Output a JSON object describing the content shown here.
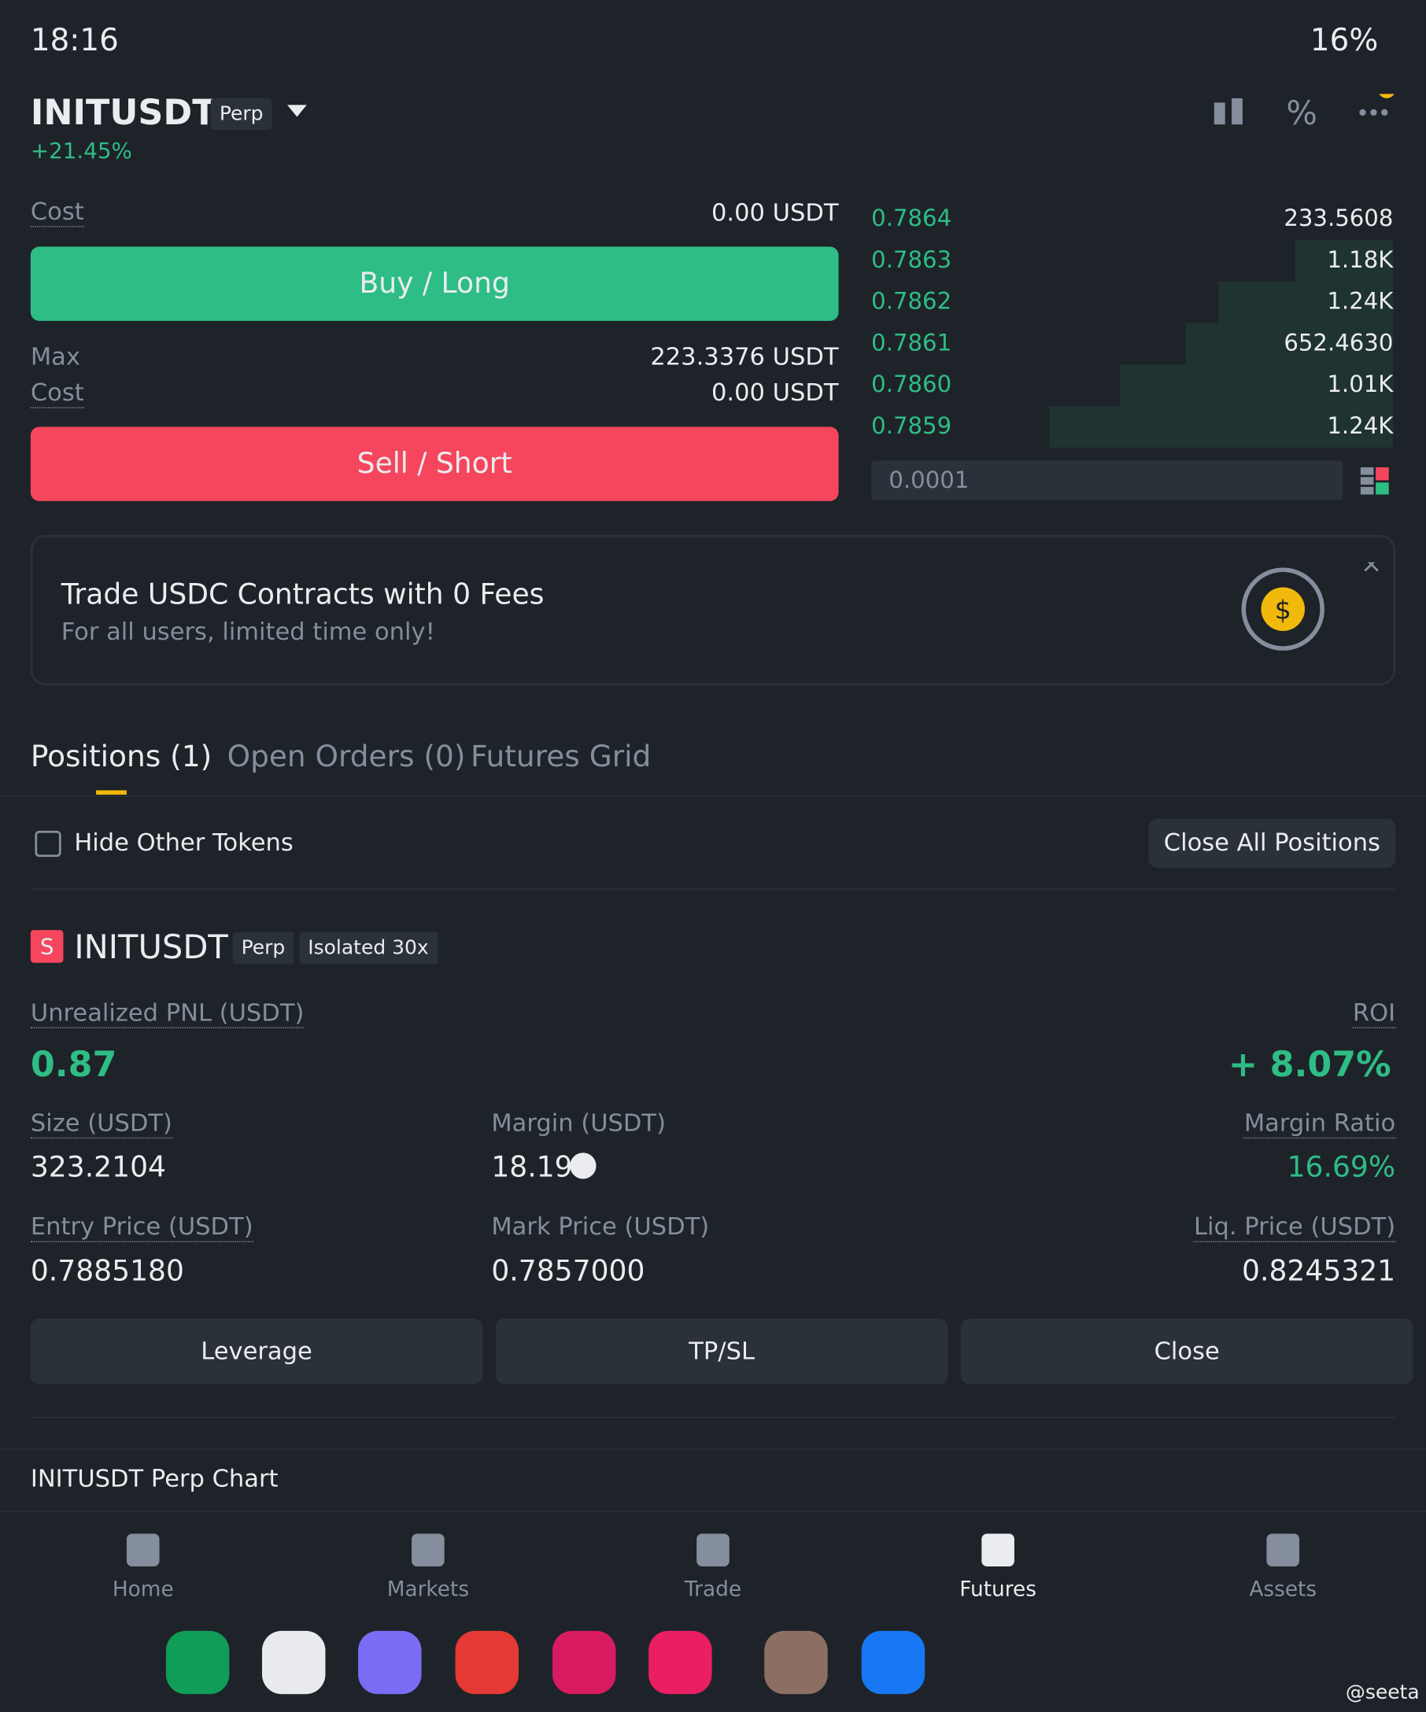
{
  "status_bar": {
    "time": "18:16",
    "battery": "16%"
  },
  "header": {
    "symbol": "INITUSDT",
    "tag": "Perp",
    "change": "+21.45%"
  },
  "order_form": {
    "cost_label": "Cost",
    "cost_value": "0.00 USDT",
    "buy_button": "Buy / Long",
    "max_label": "Max",
    "max_value": "223.3376 USDT",
    "cost2_label": "Cost",
    "cost2_value": "0.00 USDT",
    "sell_button": "Sell / Short"
  },
  "order_book": {
    "rows": [
      [
        "0.7864",
        "233.5608"
      ],
      [
        "0.7863",
        "1.18K"
      ],
      [
        "0.7862",
        "1.24K"
      ],
      [
        "0.7861",
        "652.4630"
      ],
      [
        "0.7860",
        "1.01K"
      ],
      [
        "0.7859",
        "1.24K"
      ]
    ],
    "tick_size": "0.0001"
  },
  "banner": {
    "title": "Trade USDC Contracts with 0 Fees",
    "subtitle": "For all users, limited time only!"
  },
  "tabs": [
    "Positions (1)",
    "Open Orders (0)",
    "Futures Grid"
  ],
  "filter": {
    "hide_other": "Hide Other Tokens",
    "close_all": "Close All Positions"
  },
  "position": {
    "side": "S",
    "symbol": "INITUSDT",
    "tag": "Perp",
    "margin_mode": "Isolated 30x",
    "pnl_label": "Unrealized PNL (USDT)",
    "pnl": "0.87",
    "roi_label": "ROI",
    "roi": "+ 8.07%",
    "fields": [
      {
        "label": "Size (USDT)",
        "value": "323.2104"
      },
      {
        "label": "Margin (USDT)",
        "value": "18.19"
      },
      {
        "label": "Margin Ratio",
        "value": "16.69%"
      },
      {
        "label": "Entry Price (USDT)",
        "value": "0.7885180"
      },
      {
        "label": "Mark Price (USDT)",
        "value": "0.7857000"
      },
      {
        "label": "Liq. Price (USDT)",
        "value": "0.8245321"
      }
    ],
    "buttons": [
      "Leverage",
      "TP/SL",
      "Close"
    ]
  },
  "chart_bar": "INITUSDT Perp Chart",
  "nav": [
    "Home",
    "Markets",
    "Trade",
    "Futures",
    "Assets"
  ],
  "watermark": "@seeta"
}
